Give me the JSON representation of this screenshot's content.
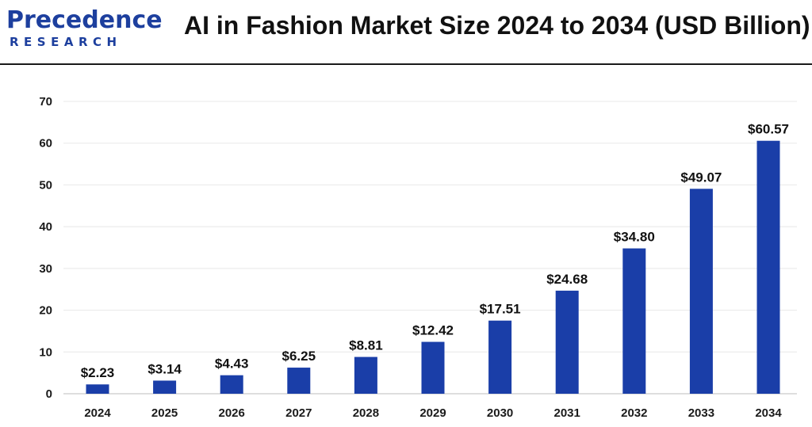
{
  "brand": {
    "name_top": "Precedence",
    "name_bottom": "RESEARCH",
    "color": "#1d3f9e"
  },
  "chart_data": {
    "type": "bar",
    "title": "AI in Fashion Market Size 2024 to 2034 (USD Billion)",
    "categories": [
      "2024",
      "2025",
      "2026",
      "2027",
      "2028",
      "2029",
      "2030",
      "2031",
      "2032",
      "2033",
      "2034"
    ],
    "values": [
      2.23,
      3.14,
      4.43,
      6.25,
      8.81,
      12.42,
      17.51,
      24.68,
      34.8,
      49.07,
      60.57
    ],
    "data_labels": [
      "$2.23",
      "$3.14",
      "$4.43",
      "$6.25",
      "$8.81",
      "$12.42",
      "$17.51",
      "$24.68",
      "$34.80",
      "$49.07",
      "$60.57"
    ],
    "y_ticks": [
      "0",
      "10",
      "20",
      "30",
      "40",
      "50",
      "60",
      "70"
    ],
    "ylim": [
      0,
      70
    ],
    "xlabel": "",
    "ylabel": "",
    "grid": true,
    "legend": "none",
    "bar_color": "#1a3ea8"
  }
}
